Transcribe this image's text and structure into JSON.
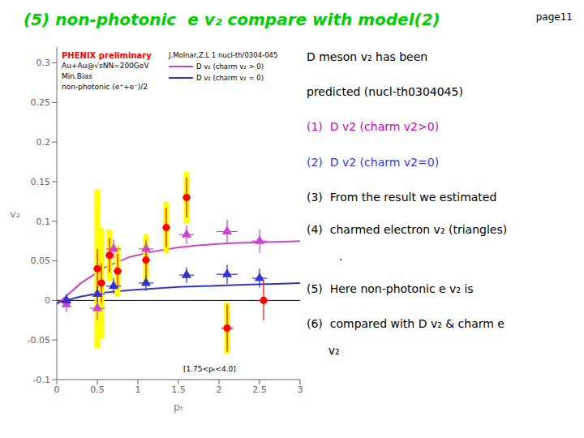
{
  "chart_data": {
    "type": "scatter",
    "title": "(5) non-photonic  e v₂ compare with model(2)",
    "title_color": "#00cc00",
    "page_label": "page11",
    "x_label": "pₜ",
    "y_label": "v₂",
    "xlim": [
      0,
      3
    ],
    "xticks": [
      0,
      0.5,
      1,
      1.5,
      2,
      2.5,
      3
    ],
    "ylim": [
      -0.1,
      0.32
    ],
    "yticks": [
      -0.1,
      -0.05,
      0,
      0.05,
      0.1,
      0.15,
      0.2,
      0.25,
      0.3
    ],
    "hline": 0,
    "grid": false,
    "series": [
      {
        "name": "D v₂ (charm v₂ > 0)",
        "type": "line",
        "color": "#cc44cc",
        "x": [
          0.0,
          0.3,
          0.6,
          0.9,
          1.2,
          1.5,
          1.8,
          2.1,
          2.4,
          2.7,
          3.0
        ],
        "values": [
          -0.005,
          0.022,
          0.042,
          0.055,
          0.062,
          0.067,
          0.07,
          0.072,
          0.073,
          0.074,
          0.075
        ]
      },
      {
        "name": "D v₂ (charm v₂ = 0)",
        "type": "line",
        "color": "#3333cc",
        "x": [
          0.0,
          0.3,
          0.6,
          0.9,
          1.2,
          1.5,
          1.8,
          2.1,
          2.4,
          2.7,
          3.0
        ],
        "values": [
          -0.003,
          0.005,
          0.01,
          0.013,
          0.015,
          0.017,
          0.018,
          0.019,
          0.02,
          0.021,
          0.022
        ]
      },
      {
        "type": "box",
        "color": "yellow",
        "x": [
          0.5,
          0.55,
          0.65,
          0.75,
          1.1,
          1.35,
          1.6,
          2.1
        ],
        "values": [
          0.04,
          0.022,
          0.057,
          0.037,
          0.051,
          0.092,
          0.13,
          -0.035
        ],
        "heights": [
          0.2,
          0.14,
          0.065,
          0.065,
          0.065,
          0.065,
          0.065,
          0.065
        ]
      },
      {
        "type": "scatter",
        "marker": "circle",
        "color": "red",
        "x": [
          0.5,
          0.55,
          0.65,
          0.75,
          1.1,
          1.35,
          1.6,
          2.1,
          2.55
        ],
        "values": [
          0.04,
          0.022,
          0.057,
          0.037,
          0.051,
          0.092,
          0.13,
          -0.035,
          0.0
        ],
        "xerr": [
          0.05,
          0.05,
          0.05,
          0.05,
          0.05,
          0.05,
          0.05,
          0.07,
          0.07
        ],
        "yerr": [
          0.025,
          0.025,
          0.022,
          0.022,
          0.022,
          0.025,
          0.025,
          0.03,
          0.025
        ]
      },
      {
        "type": "scatter",
        "marker": "triangle",
        "color": "#cc44cc",
        "x": [
          0.12,
          0.5,
          0.7,
          1.1,
          1.6,
          2.1,
          2.5
        ],
        "values": [
          -0.005,
          -0.01,
          0.065,
          0.065,
          0.083,
          0.087,
          0.075
        ],
        "xerr": [
          0.04,
          0.09,
          0.09,
          0.09,
          0.09,
          0.13,
          0.09
        ],
        "yerr": [
          0.01,
          0.015,
          0.012,
          0.012,
          0.012,
          0.015,
          0.015
        ]
      },
      {
        "type": "scatter",
        "marker": "triangle",
        "color": "#3333cc",
        "x": [
          0.12,
          0.5,
          0.7,
          1.1,
          1.6,
          2.1,
          2.5
        ],
        "values": [
          0.0,
          0.008,
          0.018,
          0.022,
          0.032,
          0.033,
          0.028
        ],
        "xerr": [
          0.04,
          0.09,
          0.09,
          0.09,
          0.09,
          0.13,
          0.09
        ],
        "yerr": [
          0.008,
          0.01,
          0.01,
          0.01,
          0.01,
          0.012,
          0.012
        ]
      }
    ],
    "legend_title": "J.Molnar,Z.L 1 nucl-th/0304-045",
    "annotations": [
      {
        "text": "PHENIX preliminary",
        "color": "red"
      },
      {
        "text": "Au+Au@√sNN=200GeV",
        "color": "black"
      },
      {
        "text": "Min.Bias",
        "color": "black"
      },
      {
        "text": "non-photonic (e⁺+e⁻)/2",
        "color": "black"
      }
    ],
    "note": "[1.75<pₜ<4.0]",
    "side_text": [
      {
        "text": "D meson v₂ has been",
        "color": "black"
      },
      {
        "text": "predicted (nucl-th0304045)",
        "color": "black"
      },
      {
        "text": "(1)  D v2 (charm v2>0)",
        "color": "#cc00cc"
      },
      {
        "text": "(2)  D v2 (charm v2=0)",
        "color": "#3333ff"
      },
      {
        "text": "(3)  From the result we estimated",
        "color": "black"
      },
      {
        "text": "(4)  charmed electron v₂ (triangles)",
        "color": "black"
      },
      {
        "text": ".",
        "color": "black"
      },
      {
        "text": "(5)  Here non-photonic e v₂ is",
        "color": "black"
      },
      {
        "text": "(6)  compared with D v₂ & charm e",
        "color": "black"
      },
      {
        "text": "      v₂",
        "color": "black"
      }
    ]
  }
}
